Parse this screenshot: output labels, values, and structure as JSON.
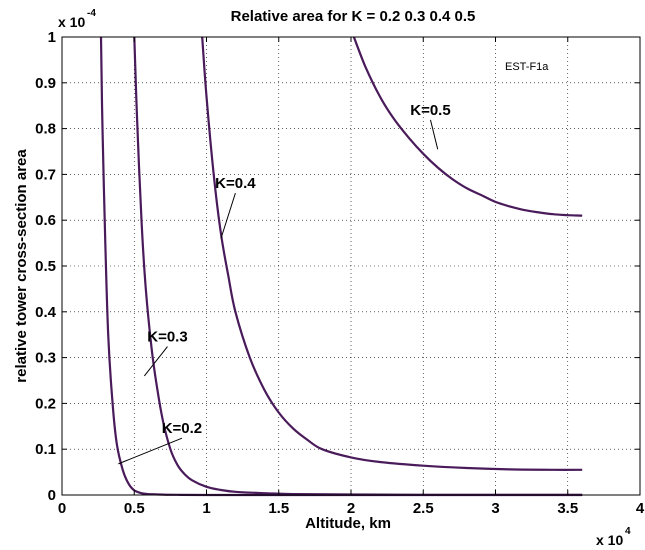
{
  "chart_data": {
    "type": "line",
    "title": "Relative area for K = 0.2  0.3  0.4  0.5",
    "xlabel": "Altitude, km",
    "ylabel": "relative tower cross-section area",
    "x_multiplier": {
      "base": "x 10",
      "exp": "4"
    },
    "y_multiplier": {
      "base": "x 10",
      "exp": "-4"
    },
    "tag": "EST-F1a",
    "xlim": [
      0,
      4
    ],
    "ylim": [
      0,
      1
    ],
    "xticks": [
      0,
      0.5,
      1,
      1.5,
      2,
      2.5,
      3,
      3.5,
      4
    ],
    "xtick_labels": [
      "0",
      "0.5",
      "1",
      "1.5",
      "2",
      "2.5",
      "3",
      "3.5",
      "4"
    ],
    "yticks": [
      0,
      0.1,
      0.2,
      0.3,
      0.4,
      0.5,
      0.6,
      0.7,
      0.8,
      0.9,
      1
    ],
    "ytick_labels": [
      "0",
      "0.1",
      "0.2",
      "0.3",
      "0.4",
      "0.5",
      "0.6",
      "0.7",
      "0.8",
      "0.9",
      "1"
    ],
    "grid": true,
    "line_color": "#4a1b5a",
    "series": [
      {
        "name": "K=0.2",
        "x": [
          0.27,
          0.28,
          0.3,
          0.32,
          0.35,
          0.38,
          0.42,
          0.46,
          0.5,
          0.55,
          0.6,
          0.7,
          0.8,
          1.0,
          1.5,
          2.0,
          3.0,
          3.6
        ],
        "y": [
          1.0,
          0.8,
          0.55,
          0.35,
          0.2,
          0.11,
          0.055,
          0.025,
          0.01,
          0.004,
          0.002,
          0.0008,
          0.0004,
          0.0001,
          0.0,
          0.0,
          0.0,
          0.0
        ]
      },
      {
        "name": "K=0.3",
        "x": [
          0.5,
          0.52,
          0.55,
          0.58,
          0.62,
          0.66,
          0.7,
          0.75,
          0.8,
          0.85,
          0.9,
          1.0,
          1.1,
          1.2,
          1.4,
          1.6,
          2.0,
          2.5,
          3.0,
          3.6
        ],
        "y": [
          1.0,
          0.82,
          0.6,
          0.45,
          0.32,
          0.23,
          0.16,
          0.1,
          0.065,
          0.045,
          0.032,
          0.018,
          0.011,
          0.007,
          0.004,
          0.002,
          0.001,
          0.0005,
          0.0003,
          0.0002
        ]
      },
      {
        "name": "K=0.4",
        "x": [
          0.97,
          1.0,
          1.05,
          1.1,
          1.15,
          1.2,
          1.3,
          1.4,
          1.5,
          1.6,
          1.7,
          1.8,
          2.0,
          2.2,
          2.5,
          2.8,
          3.1,
          3.4,
          3.6
        ],
        "y": [
          1.0,
          0.87,
          0.7,
          0.57,
          0.48,
          0.4,
          0.3,
          0.23,
          0.18,
          0.145,
          0.12,
          0.1,
          0.082,
          0.072,
          0.064,
          0.059,
          0.056,
          0.055,
          0.055
        ]
      },
      {
        "name": "K=0.5",
        "x": [
          2.02,
          2.1,
          2.2,
          2.3,
          2.4,
          2.5,
          2.6,
          2.7,
          2.8,
          2.9,
          3.0,
          3.1,
          3.2,
          3.3,
          3.4,
          3.5,
          3.6
        ],
        "y": [
          1.0,
          0.935,
          0.87,
          0.82,
          0.78,
          0.745,
          0.715,
          0.69,
          0.67,
          0.655,
          0.64,
          0.63,
          0.622,
          0.617,
          0.613,
          0.611,
          0.61
        ]
      }
    ],
    "annotations": [
      {
        "text": "K=0.5",
        "series": "K=0.5",
        "label_at": [
          2.55,
          0.83
        ],
        "point": [
          2.6,
          0.755
        ]
      },
      {
        "text": "K=0.4",
        "series": "K=0.4",
        "label_at": [
          1.2,
          0.67
        ],
        "point": [
          1.1,
          0.56
        ]
      },
      {
        "text": "K=0.3",
        "series": "K=0.3",
        "label_at": [
          0.73,
          0.335
        ],
        "point": [
          0.57,
          0.26
        ]
      },
      {
        "text": "K=0.2",
        "series": "K=0.2",
        "label_at": [
          0.83,
          0.135
        ],
        "point": [
          0.39,
          0.068
        ]
      }
    ]
  }
}
